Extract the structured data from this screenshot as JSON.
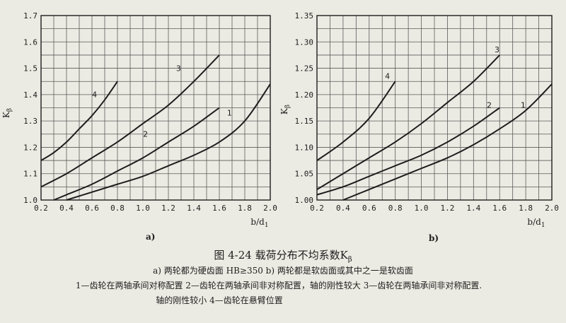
{
  "figure": {
    "title": "图 4-24 载荷分布不均系数K",
    "title_subscript": "β",
    "caption_line1": "a) 两轮都为硬齿面 HB≥350 b) 两轮都是软齿面或其中之一是软齿面",
    "caption_line2": "1—齿轮在两轴承间对称配置 2—齿轮在两轴承间非对称配置，轴的刚性较大 3—齿轮在两轴承间非对称配置.",
    "caption_line3": "轴的刚性较小 4—齿轮在悬臂位置"
  },
  "chart_data": [
    {
      "type": "line",
      "panel_label": "a)",
      "xlabel": "b/d",
      "xlabel_subscript": "1",
      "ylabel": "K",
      "ylabel_subscript": "β",
      "xlim": [
        0.2,
        2.0
      ],
      "ylim": [
        1.0,
        1.7
      ],
      "x_ticks": [
        0.2,
        0.4,
        0.6,
        0.8,
        1.0,
        1.2,
        1.4,
        1.6,
        1.8,
        2.0
      ],
      "x_tick_labels": [
        "0.2",
        "0.4",
        "0.6",
        "0.8",
        "1.0",
        "1.2",
        "1.4",
        "1.6",
        "1.8",
        "2.0"
      ],
      "y_ticks": [
        1.0,
        1.1,
        1.2,
        1.3,
        1.4,
        1.5,
        1.6,
        1.7
      ],
      "y_tick_labels": [
        "1.0",
        "1.1",
        "1.2",
        "1.3",
        "1.4",
        "1.5",
        "1.6",
        "1.7"
      ],
      "grid": true,
      "series": [
        {
          "name": "1",
          "x": [
            0.4,
            0.6,
            0.8,
            1.0,
            1.2,
            1.4,
            1.6,
            1.8,
            2.0
          ],
          "y": [
            1.0,
            1.03,
            1.06,
            1.09,
            1.13,
            1.17,
            1.22,
            1.3,
            1.44
          ]
        },
        {
          "name": "2",
          "x": [
            0.3,
            0.4,
            0.6,
            0.8,
            1.0,
            1.2,
            1.4,
            1.6
          ],
          "y": [
            1.0,
            1.02,
            1.06,
            1.11,
            1.16,
            1.22,
            1.28,
            1.35
          ]
        },
        {
          "name": "3",
          "x": [
            0.2,
            0.4,
            0.6,
            0.8,
            1.0,
            1.2,
            1.4,
            1.6
          ],
          "y": [
            1.05,
            1.1,
            1.16,
            1.22,
            1.29,
            1.36,
            1.45,
            1.55
          ]
        },
        {
          "name": "4",
          "x": [
            0.2,
            0.3,
            0.4,
            0.5,
            0.6,
            0.7,
            0.8
          ],
          "y": [
            1.15,
            1.18,
            1.22,
            1.27,
            1.32,
            1.38,
            1.45
          ]
        }
      ],
      "curve_labels": [
        {
          "text": "1",
          "x": 1.68,
          "y": 1.32
        },
        {
          "text": "2",
          "x": 1.02,
          "y": 1.24
        },
        {
          "text": "3",
          "x": 1.28,
          "y": 1.49
        },
        {
          "text": "4",
          "x": 0.62,
          "y": 1.39
        }
      ]
    },
    {
      "type": "line",
      "panel_label": "b)",
      "xlabel": "b/d",
      "xlabel_subscript": "1",
      "ylabel": "K",
      "ylabel_subscript": "β",
      "xlim": [
        0.2,
        2.0
      ],
      "ylim": [
        1.0,
        1.35
      ],
      "x_ticks": [
        0.2,
        0.4,
        0.6,
        0.8,
        1.0,
        1.2,
        1.4,
        1.6,
        1.8,
        2.0
      ],
      "x_tick_labels": [
        "0.2",
        "0.4",
        "0.6",
        "0.8",
        "1.0",
        "1.2",
        "1.4",
        "1.6",
        "1.8",
        "2.0"
      ],
      "y_ticks": [
        1.0,
        1.05,
        1.1,
        1.15,
        1.2,
        1.25,
        1.3,
        1.35
      ],
      "y_tick_labels": [
        "1.00",
        "1.05",
        "1.10",
        "1.15",
        "1.20",
        "1.25",
        "1.30",
        "1.35"
      ],
      "grid": true,
      "series": [
        {
          "name": "1",
          "x": [
            0.4,
            0.6,
            0.8,
            1.0,
            1.2,
            1.4,
            1.6,
            1.8,
            2.0
          ],
          "y": [
            1.0,
            1.02,
            1.04,
            1.06,
            1.08,
            1.105,
            1.135,
            1.17,
            1.22
          ]
        },
        {
          "name": "2",
          "x": [
            0.2,
            0.4,
            0.6,
            0.8,
            1.0,
            1.2,
            1.4,
            1.6
          ],
          "y": [
            1.01,
            1.025,
            1.045,
            1.065,
            1.085,
            1.11,
            1.14,
            1.175
          ]
        },
        {
          "name": "3",
          "x": [
            0.2,
            0.4,
            0.6,
            0.8,
            1.0,
            1.2,
            1.4,
            1.6
          ],
          "y": [
            1.02,
            1.05,
            1.08,
            1.11,
            1.145,
            1.185,
            1.225,
            1.275
          ]
        },
        {
          "name": "4",
          "x": [
            0.2,
            0.4,
            0.6,
            0.8
          ],
          "y": [
            1.075,
            1.11,
            1.155,
            1.225
          ]
        }
      ],
      "curve_labels": [
        {
          "text": "1",
          "x": 1.78,
          "y": 1.175
        },
        {
          "text": "2",
          "x": 1.52,
          "y": 1.175
        },
        {
          "text": "3",
          "x": 1.58,
          "y": 1.28
        },
        {
          "text": "4",
          "x": 0.74,
          "y": 1.23
        }
      ]
    }
  ],
  "colors": {
    "ink": "#1d1d1d",
    "grid": "#5a5a5a",
    "paper": "#ecebe3"
  }
}
